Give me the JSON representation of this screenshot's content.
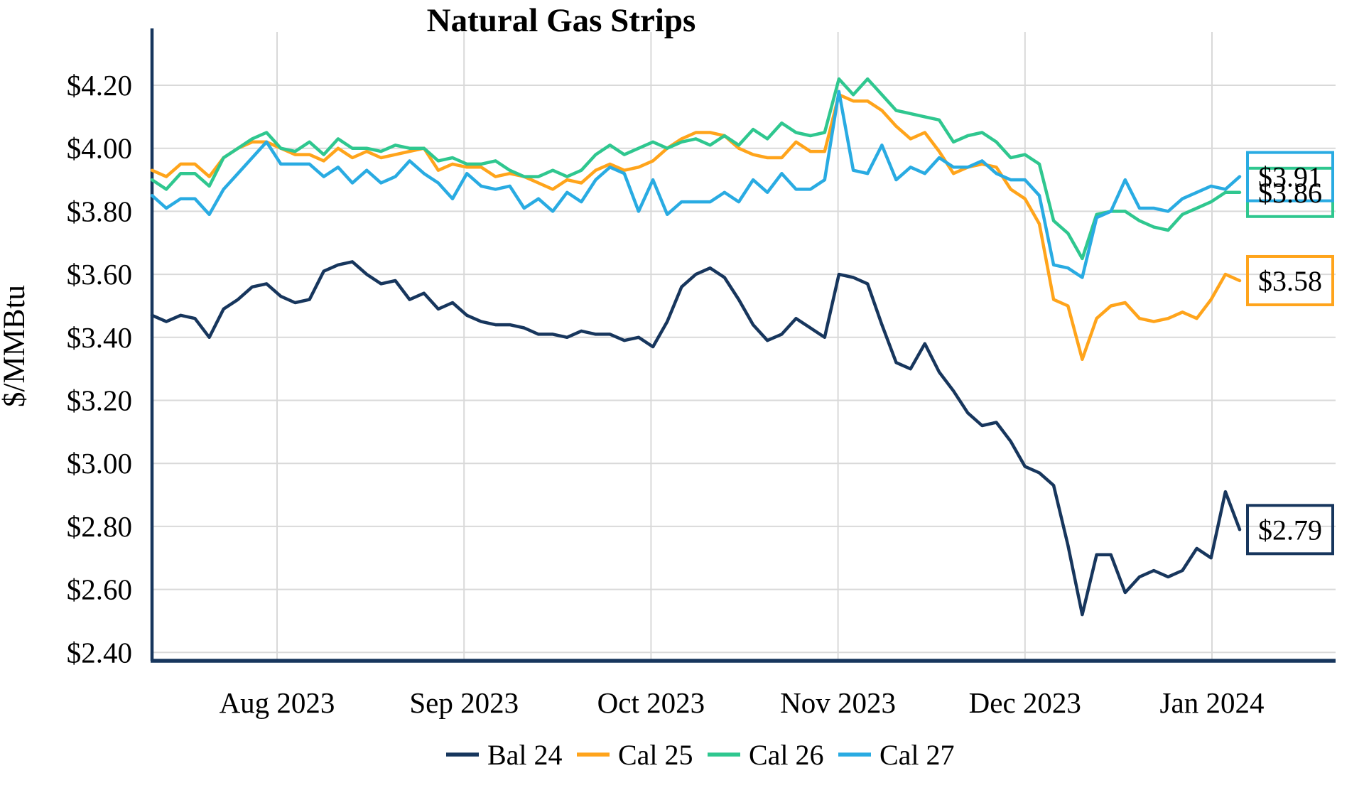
{
  "title": "Natural Gas Strips",
  "chart_data": {
    "type": "line",
    "title": "Natural Gas Strips",
    "xlabel": "",
    "ylabel": "$/MMBtu",
    "grid": true,
    "legend_position": "bottom",
    "ylim": [
      2.37,
      4.37
    ],
    "y_ticks": [
      {
        "label": "$4.20",
        "value": 4.2
      },
      {
        "label": "$4.00",
        "value": 4.0
      },
      {
        "label": "$3.80",
        "value": 3.8
      },
      {
        "label": "$3.60",
        "value": 3.6
      },
      {
        "label": "$3.40",
        "value": 3.4
      },
      {
        "label": "$3.20",
        "value": 3.2
      },
      {
        "label": "$3.00",
        "value": 3.0
      },
      {
        "label": "$2.80",
        "value": 2.8
      },
      {
        "label": "$2.60",
        "value": 2.6
      },
      {
        "label": "$2.40",
        "value": 2.4
      }
    ],
    "x_ticks": [
      {
        "label": "Aug 2023"
      },
      {
        "label": "Sep 2023"
      },
      {
        "label": "Oct 2023"
      },
      {
        "label": "Nov 2023"
      },
      {
        "label": "Dec 2023"
      },
      {
        "label": "Jan 2024"
      }
    ],
    "axis_color": "#17365D",
    "grid_color": "#d9d9d9",
    "series": [
      {
        "name": "Bal 24",
        "color": "#17365D",
        "end_label": "$2.79",
        "end_value": 2.79,
        "values": [
          3.47,
          3.45,
          3.47,
          3.46,
          3.4,
          3.49,
          3.52,
          3.56,
          3.57,
          3.53,
          3.51,
          3.52,
          3.61,
          3.63,
          3.64,
          3.6,
          3.57,
          3.58,
          3.52,
          3.54,
          3.49,
          3.51,
          3.47,
          3.45,
          3.44,
          3.44,
          3.43,
          3.41,
          3.41,
          3.4,
          3.42,
          3.41,
          3.41,
          3.39,
          3.4,
          3.37,
          3.45,
          3.56,
          3.6,
          3.62,
          3.59,
          3.52,
          3.44,
          3.39,
          3.41,
          3.46,
          3.43,
          3.4,
          3.6,
          3.59,
          3.57,
          3.44,
          3.32,
          3.3,
          3.38,
          3.29,
          3.23,
          3.16,
          3.12,
          3.13,
          3.07,
          2.99,
          2.97,
          2.93,
          2.74,
          2.52,
          2.71,
          2.71,
          2.59,
          2.64,
          2.66,
          2.64,
          2.66,
          2.73,
          2.7,
          2.91,
          2.79
        ]
      },
      {
        "name": "Cal 25",
        "color": "#FFA41B",
        "end_label": "$3.58",
        "end_value": 3.58,
        "values": [
          3.93,
          3.91,
          3.95,
          3.95,
          3.91,
          3.97,
          4.0,
          4.02,
          4.02,
          4.0,
          3.98,
          3.98,
          3.96,
          4.0,
          3.97,
          3.99,
          3.97,
          3.98,
          3.99,
          4.0,
          3.93,
          3.95,
          3.94,
          3.94,
          3.91,
          3.92,
          3.91,
          3.89,
          3.87,
          3.9,
          3.89,
          3.93,
          3.95,
          3.93,
          3.94,
          3.96,
          4.0,
          4.03,
          4.05,
          4.05,
          4.04,
          4.0,
          3.98,
          3.97,
          3.97,
          4.02,
          3.99,
          3.99,
          4.17,
          4.15,
          4.15,
          4.12,
          4.07,
          4.03,
          4.05,
          3.99,
          3.92,
          3.94,
          3.95,
          3.94,
          3.87,
          3.84,
          3.76,
          3.52,
          3.5,
          3.33,
          3.46,
          3.5,
          3.51,
          3.46,
          3.45,
          3.46,
          3.48,
          3.46,
          3.52,
          3.6,
          3.58
        ]
      },
      {
        "name": "Cal 26",
        "color": "#2FC78F",
        "end_label": "$3.86",
        "end_value": 3.86,
        "values": [
          3.9,
          3.87,
          3.92,
          3.92,
          3.88,
          3.97,
          4.0,
          4.03,
          4.05,
          4.0,
          3.99,
          4.02,
          3.98,
          4.03,
          4.0,
          4.0,
          3.99,
          4.01,
          4.0,
          4.0,
          3.96,
          3.97,
          3.95,
          3.95,
          3.96,
          3.93,
          3.91,
          3.91,
          3.93,
          3.91,
          3.93,
          3.98,
          4.01,
          3.98,
          4.0,
          4.02,
          4.0,
          4.02,
          4.03,
          4.01,
          4.04,
          4.01,
          4.06,
          4.03,
          4.08,
          4.05,
          4.04,
          4.05,
          4.22,
          4.17,
          4.22,
          4.17,
          4.12,
          4.11,
          4.1,
          4.09,
          4.02,
          4.04,
          4.05,
          4.02,
          3.97,
          3.98,
          3.95,
          3.77,
          3.73,
          3.65,
          3.79,
          3.8,
          3.8,
          3.77,
          3.75,
          3.74,
          3.79,
          3.81,
          3.83,
          3.86,
          3.86
        ]
      },
      {
        "name": "Cal 27",
        "color": "#29ABE2",
        "end_label": "$3.91",
        "end_value": 3.91,
        "values": [
          3.85,
          3.81,
          3.84,
          3.84,
          3.79,
          3.87,
          3.92,
          3.97,
          4.02,
          3.95,
          3.95,
          3.95,
          3.91,
          3.94,
          3.89,
          3.93,
          3.89,
          3.91,
          3.96,
          3.92,
          3.89,
          3.84,
          3.92,
          3.88,
          3.87,
          3.88,
          3.81,
          3.84,
          3.8,
          3.86,
          3.83,
          3.9,
          3.94,
          3.92,
          3.8,
          3.9,
          3.79,
          3.83,
          3.83,
          3.83,
          3.86,
          3.83,
          3.9,
          3.86,
          3.92,
          3.87,
          3.87,
          3.9,
          4.18,
          3.93,
          3.92,
          4.01,
          3.9,
          3.94,
          3.92,
          3.97,
          3.94,
          3.94,
          3.96,
          3.92,
          3.9,
          3.9,
          3.85,
          3.63,
          3.62,
          3.59,
          3.78,
          3.8,
          3.9,
          3.81,
          3.81,
          3.8,
          3.84,
          3.86,
          3.88,
          3.87,
          3.91
        ]
      }
    ]
  }
}
